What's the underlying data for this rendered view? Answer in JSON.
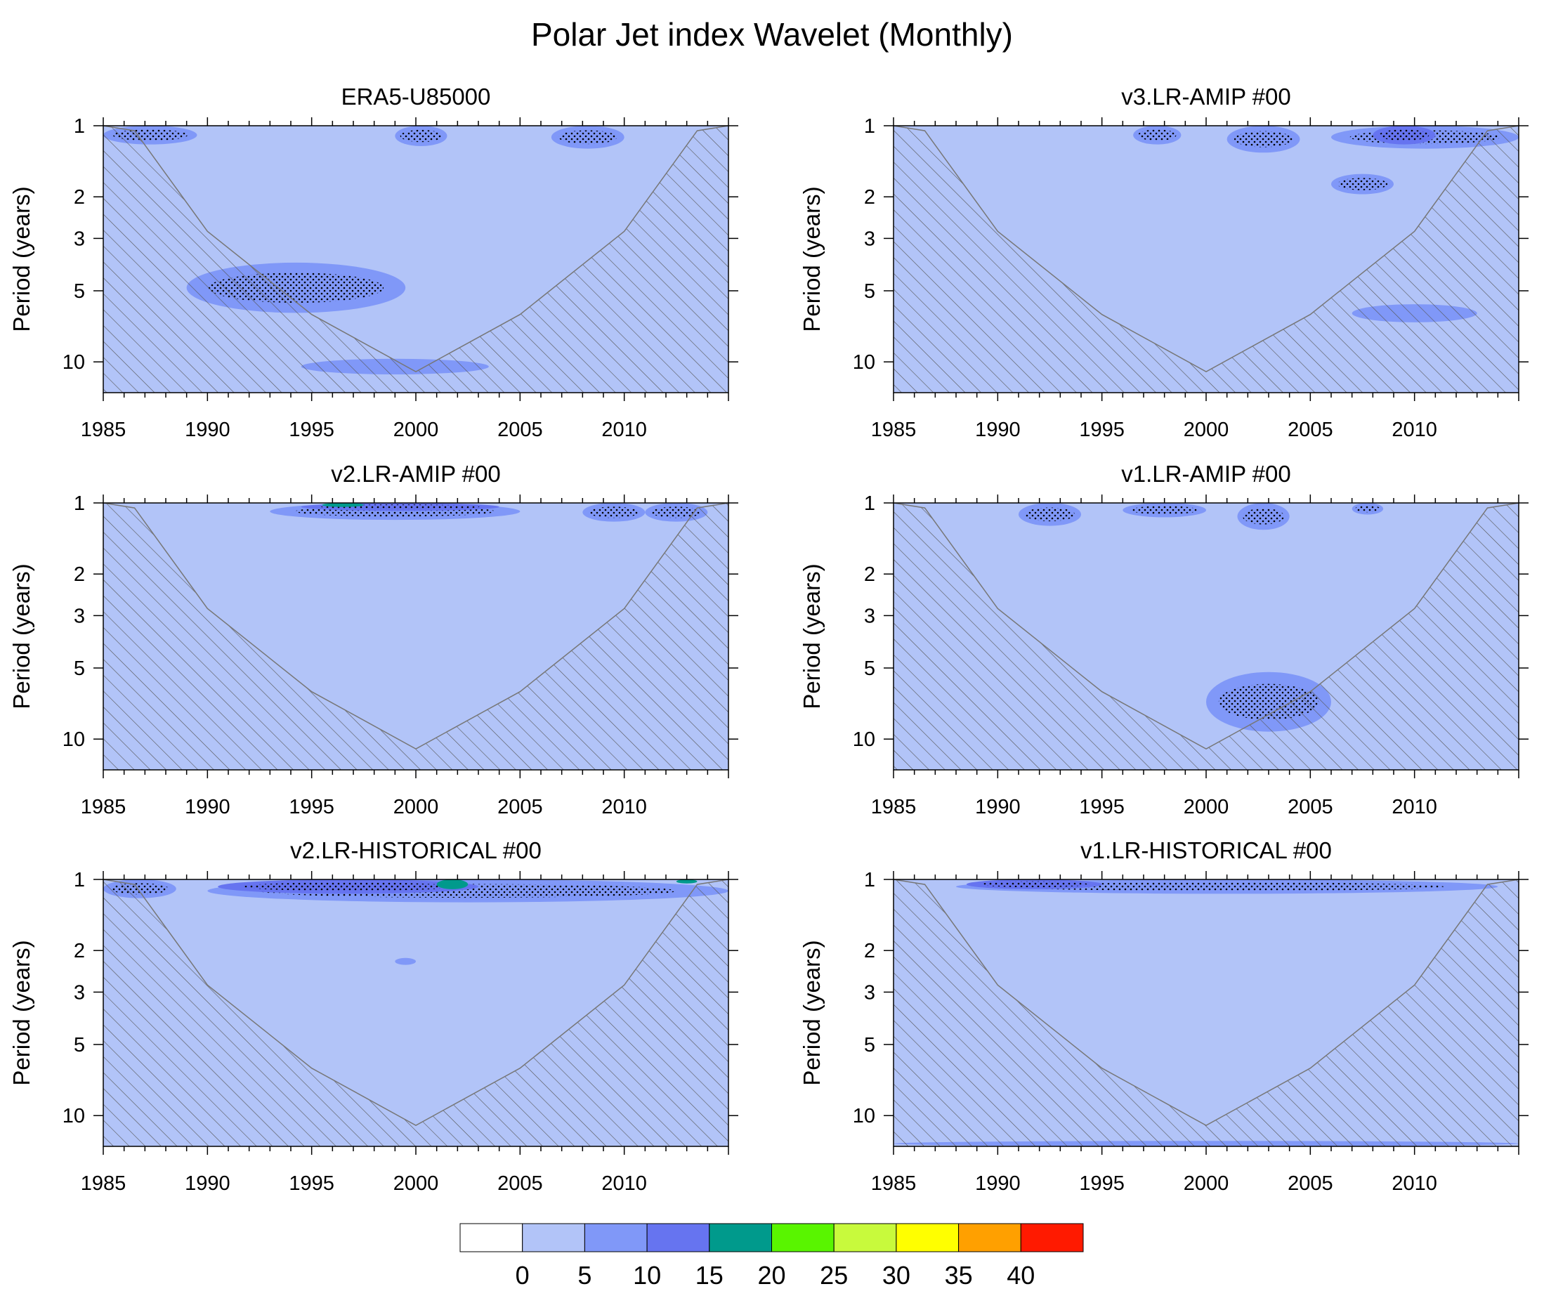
{
  "figure_title": "Polar Jet index Wavelet (Monthly)",
  "colors": {
    "background": "#ffffff",
    "cone_of_influence": "#b2c4f8",
    "hatch": "#555555",
    "axis": "#000000"
  },
  "chart_data": [
    {
      "type": "heatmap",
      "title": "ERA5-U85000",
      "xlabel": "",
      "ylabel": "Period (years)",
      "xlim": [
        1985,
        2015
      ],
      "ylim": [
        1,
        13.5
      ],
      "yscale": "log",
      "xticks": [
        1985,
        1990,
        1995,
        2000,
        2005,
        2010
      ],
      "yticks": [
        1,
        2,
        3,
        5,
        10
      ],
      "base_level": "0-5",
      "cone_of_influence": {
        "x": [
          1985,
          1986.5,
          1990,
          1995,
          2000,
          2005,
          2010,
          2013.5,
          2015
        ],
        "period": [
          1,
          1.05,
          2.8,
          6.3,
          11.0,
          6.3,
          2.8,
          1.05,
          1
        ]
      },
      "features": [
        {
          "label": "5-10",
          "x": [
            1985,
            1989.5
          ],
          "period": [
            1,
            1.2
          ],
          "significant": true
        },
        {
          "label": "5-10",
          "x": [
            1989,
            1999.5
          ],
          "period": [
            3.8,
            6.2
          ],
          "significant": true
        },
        {
          "label": "5-10",
          "x": [
            1994.5,
            2003.5
          ],
          "period": [
            9.7,
            11.3
          ],
          "significant": false
        },
        {
          "label": "5-10",
          "x": [
            1999,
            2001.5
          ],
          "period": [
            1,
            1.22
          ],
          "significant": true
        },
        {
          "label": "5-10",
          "x": [
            2006.5,
            2010
          ],
          "period": [
            1,
            1.25
          ],
          "significant": true
        }
      ]
    },
    {
      "type": "heatmap",
      "title": "v3.LR-AMIP  #00",
      "xlabel": "",
      "ylabel": "Period (years)",
      "xlim": [
        1985,
        2015
      ],
      "ylim": [
        1,
        13.5
      ],
      "yscale": "log",
      "xticks": [
        1985,
        1990,
        1995,
        2000,
        2005,
        2010
      ],
      "yticks": [
        1,
        2,
        3,
        5,
        10
      ],
      "base_level": "0-5",
      "cone_of_influence": {
        "x": [
          1985,
          1986.5,
          1990,
          1995,
          2000,
          2005,
          2010,
          2013.5,
          2015
        ],
        "period": [
          1,
          1.05,
          2.8,
          6.3,
          11.0,
          6.3,
          2.8,
          1.05,
          1
        ]
      },
      "features": [
        {
          "label": "5-10",
          "x": [
            1996.5,
            1998.8
          ],
          "period": [
            1,
            1.2
          ],
          "significant": true
        },
        {
          "label": "5-10",
          "x": [
            2001,
            2004.5
          ],
          "period": [
            1,
            1.3
          ],
          "significant": true
        },
        {
          "label": "5-10",
          "x": [
            2006,
            2015
          ],
          "period": [
            1,
            1.25
          ],
          "significant": true
        },
        {
          "label": "10-15",
          "x": [
            2008,
            2011
          ],
          "period": [
            1,
            1.2
          ],
          "significant": true
        },
        {
          "label": "5-10",
          "x": [
            2006,
            2009
          ],
          "period": [
            1.6,
            1.95
          ],
          "significant": true
        },
        {
          "label": "5-10",
          "x": [
            2007,
            2013
          ],
          "period": [
            5.7,
            6.8
          ],
          "significant": false
        }
      ]
    },
    {
      "type": "heatmap",
      "title": "v2.LR-AMIP  #00",
      "xlabel": "",
      "ylabel": "Period (years)",
      "xlim": [
        1985,
        2015
      ],
      "ylim": [
        1,
        13.5
      ],
      "yscale": "log",
      "xticks": [
        1985,
        1990,
        1995,
        2000,
        2005,
        2010
      ],
      "yticks": [
        1,
        2,
        3,
        5,
        10
      ],
      "base_level": "0-5",
      "cone_of_influence": {
        "x": [
          1985,
          1986.5,
          1990,
          1995,
          2000,
          2005,
          2010,
          2013.5,
          2015
        ],
        "period": [
          1,
          1.05,
          2.8,
          6.3,
          11.0,
          6.3,
          2.8,
          1.05,
          1
        ]
      },
      "features": [
        {
          "label": "5-10",
          "x": [
            1993,
            2005
          ],
          "period": [
            1,
            1.18
          ],
          "significant": true
        },
        {
          "label": "10-15",
          "x": [
            1994.5,
            2004
          ],
          "period": [
            1,
            1.08
          ],
          "significant": true
        },
        {
          "label": "15-20",
          "x": [
            1995.5,
            1997.5
          ],
          "period": [
            1,
            1.04
          ],
          "significant": false
        },
        {
          "label": "5-10",
          "x": [
            2008,
            2011
          ],
          "period": [
            1,
            1.2
          ],
          "significant": true
        },
        {
          "label": "5-10",
          "x": [
            2011,
            2014
          ],
          "period": [
            1,
            1.2
          ],
          "significant": true
        }
      ]
    },
    {
      "type": "heatmap",
      "title": "v1.LR-AMIP  #00",
      "xlabel": "",
      "ylabel": "Period (years)",
      "xlim": [
        1985,
        2015
      ],
      "ylim": [
        1,
        13.5
      ],
      "yscale": "log",
      "xticks": [
        1985,
        1990,
        1995,
        2000,
        2005,
        2010
      ],
      "yticks": [
        1,
        2,
        3,
        5,
        10
      ],
      "base_level": "0-5",
      "cone_of_influence": {
        "x": [
          1985,
          1986.5,
          1990,
          1995,
          2000,
          2005,
          2010,
          2013.5,
          2015
        ],
        "period": [
          1,
          1.05,
          2.8,
          6.3,
          11.0,
          6.3,
          2.8,
          1.05,
          1
        ]
      },
      "features": [
        {
          "label": "5-10",
          "x": [
            1991,
            1994
          ],
          "period": [
            1,
            1.25
          ],
          "significant": true
        },
        {
          "label": "5-10",
          "x": [
            1996,
            2000
          ],
          "period": [
            1,
            1.15
          ],
          "significant": true
        },
        {
          "label": "5-10",
          "x": [
            2001.5,
            2004
          ],
          "period": [
            1,
            1.3
          ],
          "significant": true
        },
        {
          "label": "5-10",
          "x": [
            2007,
            2008.5
          ],
          "period": [
            1,
            1.12
          ],
          "significant": true
        },
        {
          "label": "5-10",
          "x": [
            2000,
            2006
          ],
          "period": [
            5.2,
            9.3
          ],
          "significant": true
        }
      ]
    },
    {
      "type": "heatmap",
      "title": "v2.LR-HISTORICAL  #00",
      "xlabel": "",
      "ylabel": "Period (years)",
      "xlim": [
        1985,
        2015
      ],
      "ylim": [
        1,
        13.5
      ],
      "yscale": "log",
      "xticks": [
        1985,
        1990,
        1995,
        2000,
        2005,
        2010
      ],
      "yticks": [
        1,
        2,
        3,
        5,
        10
      ],
      "base_level": "0-5",
      "cone_of_influence": {
        "x": [
          1985,
          1986.5,
          1990,
          1995,
          2000,
          2005,
          2010,
          2013.5,
          2015
        ],
        "period": [
          1,
          1.05,
          2.8,
          6.3,
          11.0,
          6.3,
          2.8,
          1.05,
          1
        ]
      },
      "features": [
        {
          "label": "5-10",
          "x": [
            1985,
            1988.5
          ],
          "period": [
            1,
            1.2
          ],
          "significant": true
        },
        {
          "label": "5-10",
          "x": [
            1990,
            2015
          ],
          "period": [
            1,
            1.25
          ],
          "significant": true
        },
        {
          "label": "10-15",
          "x": [
            1990.5,
            2003
          ],
          "period": [
            1,
            1.15
          ],
          "significant": true
        },
        {
          "label": "15-20",
          "x": [
            2001,
            2002.5
          ],
          "period": [
            1,
            1.1
          ],
          "significant": false
        },
        {
          "label": "15-20",
          "x": [
            2012.5,
            2013.5
          ],
          "period": [
            1,
            1.04
          ],
          "significant": false
        },
        {
          "label": "5-10",
          "x": [
            1999,
            2000
          ],
          "period": [
            2.15,
            2.3
          ],
          "significant": false
        }
      ]
    },
    {
      "type": "heatmap",
      "title": "v1.LR-HISTORICAL  #00",
      "xlabel": "",
      "ylabel": "Period (years)",
      "xlim": [
        1985,
        2015
      ],
      "ylim": [
        1,
        13.5
      ],
      "yscale": "log",
      "xticks": [
        1985,
        1990,
        1995,
        2000,
        2005,
        2010
      ],
      "yticks": [
        1,
        2,
        3,
        5,
        10
      ],
      "base_level": "0-5",
      "cone_of_influence": {
        "x": [
          1985,
          1986.5,
          1990,
          1995,
          2000,
          2005,
          2010,
          2013.5,
          2015
        ],
        "period": [
          1,
          1.05,
          2.8,
          6.3,
          11.0,
          6.3,
          2.8,
          1.05,
          1
        ]
      },
      "features": [
        {
          "label": "5-10",
          "x": [
            1988,
            2014
          ],
          "period": [
            1,
            1.15
          ],
          "significant": true
        },
        {
          "label": "10-15",
          "x": [
            1988.5,
            1995
          ],
          "period": [
            1,
            1.1
          ],
          "significant": true
        },
        {
          "label": "5-10",
          "x": [
            1985,
            2015
          ],
          "period": [
            12.8,
            13.5
          ],
          "significant": false
        }
      ]
    }
  ],
  "colorbar": {
    "levels": [
      "0",
      "5",
      "10",
      "15",
      "20",
      "25",
      "30",
      "35",
      "40"
    ],
    "colors": [
      "#ffffff",
      "#b2c4f8",
      "#8098f8",
      "#6674f0",
      "#009a8c",
      "#59f500",
      "#c8fa3c",
      "#ffff00",
      "#ffa000",
      "#ff1a00"
    ]
  }
}
